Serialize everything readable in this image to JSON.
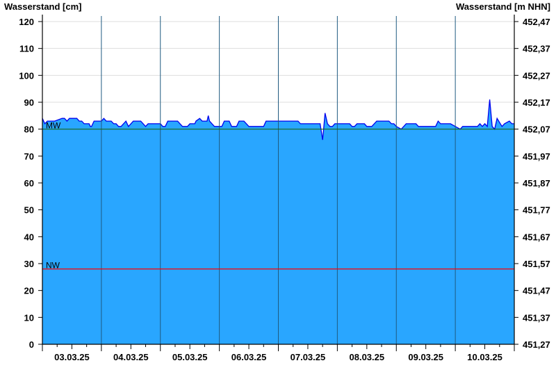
{
  "chart_data": {
    "type": "area",
    "ylabel_left": "Wasserstand [cm]",
    "ylabel_right": "Wasserstand [m NHN]",
    "ylim": [
      0,
      120
    ],
    "yticks_left": [
      "0",
      "10",
      "20",
      "30",
      "40",
      "50",
      "60",
      "70",
      "80",
      "90",
      "100",
      "110",
      "120"
    ],
    "yticks_right": [
      "451,27",
      "451,37",
      "451,47",
      "451,57",
      "451,67",
      "451,77",
      "451,87",
      "451,97",
      "452,07",
      "452,17",
      "452,27",
      "452,37",
      "452,47"
    ],
    "xlim": [
      "2025-03-03T00:00",
      "2025-03-11T00:00"
    ],
    "xtick_labels": [
      "03.03.25",
      "04.03.25",
      "05.03.25",
      "06.03.25",
      "07.03.25",
      "08.03.25",
      "09.03.25",
      "10.03.25"
    ],
    "grid": "horizontal",
    "colors": {
      "fill": "#29a6ff",
      "line": "#0000ee",
      "mw": "#1a6b1a",
      "nw": "#ff0000",
      "day_line": "#1f5a80",
      "grid": "#dddddd"
    },
    "reference_lines": [
      {
        "label": "MW",
        "value": 80
      },
      {
        "label": "NW",
        "value": 28
      }
    ],
    "series": [
      {
        "points": [
          [
            "2025-03-03T00:00",
            84
          ],
          [
            "2025-03-03T01:00",
            82
          ],
          [
            "2025-03-03T02:00",
            83
          ],
          [
            "2025-03-03T05:00",
            83
          ],
          [
            "2025-03-03T08:00",
            84
          ],
          [
            "2025-03-03T09:00",
            84
          ],
          [
            "2025-03-03T10:00",
            83
          ],
          [
            "2025-03-03T11:00",
            84
          ],
          [
            "2025-03-03T14:00",
            84
          ],
          [
            "2025-03-03T15:00",
            83
          ],
          [
            "2025-03-03T16:00",
            83
          ],
          [
            "2025-03-03T17:00",
            82
          ],
          [
            "2025-03-03T19:00",
            82
          ],
          [
            "2025-03-03T19:30",
            81
          ],
          [
            "2025-03-03T20:00",
            81
          ],
          [
            "2025-03-03T21:00",
            83
          ],
          [
            "2025-03-04T00:00",
            83
          ],
          [
            "2025-03-04T01:00",
            84
          ],
          [
            "2025-03-04T02:00",
            83
          ],
          [
            "2025-03-04T04:00",
            83
          ],
          [
            "2025-03-04T05:00",
            82
          ],
          [
            "2025-03-04T06:00",
            82
          ],
          [
            "2025-03-04T07:00",
            81
          ],
          [
            "2025-03-04T08:00",
            81
          ],
          [
            "2025-03-04T10:00",
            83
          ],
          [
            "2025-03-04T11:00",
            81
          ],
          [
            "2025-03-04T13:00",
            83
          ],
          [
            "2025-03-04T16:00",
            83
          ],
          [
            "2025-03-04T17:00",
            82
          ],
          [
            "2025-03-04T18:00",
            81
          ],
          [
            "2025-03-04T19:00",
            82
          ],
          [
            "2025-03-05T00:00",
            82
          ],
          [
            "2025-03-05T01:00",
            81
          ],
          [
            "2025-03-05T02:00",
            81
          ],
          [
            "2025-03-05T03:00",
            83
          ],
          [
            "2025-03-05T07:00",
            83
          ],
          [
            "2025-03-05T08:00",
            82
          ],
          [
            "2025-03-05T09:00",
            81
          ],
          [
            "2025-03-05T11:00",
            81
          ],
          [
            "2025-03-05T12:00",
            82
          ],
          [
            "2025-03-05T14:00",
            82
          ],
          [
            "2025-03-05T14:30",
            83
          ],
          [
            "2025-03-05T16:00",
            84
          ],
          [
            "2025-03-05T17:00",
            83
          ],
          [
            "2025-03-05T19:00",
            83
          ],
          [
            "2025-03-05T19:30",
            85
          ],
          [
            "2025-03-05T20:00",
            83
          ],
          [
            "2025-03-05T21:00",
            82
          ],
          [
            "2025-03-05T22:00",
            81
          ],
          [
            "2025-03-06T01:00",
            81
          ],
          [
            "2025-03-06T02:00",
            83
          ],
          [
            "2025-03-06T04:00",
            83
          ],
          [
            "2025-03-06T05:00",
            81
          ],
          [
            "2025-03-06T07:00",
            81
          ],
          [
            "2025-03-06T08:00",
            83
          ],
          [
            "2025-03-06T10:00",
            83
          ],
          [
            "2025-03-06T11:00",
            82
          ],
          [
            "2025-03-06T12:00",
            81
          ],
          [
            "2025-03-06T18:00",
            81
          ],
          [
            "2025-03-06T19:00",
            83
          ],
          [
            "2025-03-07T08:00",
            83
          ],
          [
            "2025-03-07T09:00",
            82
          ],
          [
            "2025-03-07T17:00",
            82
          ],
          [
            "2025-03-07T18:00",
            76
          ],
          [
            "2025-03-07T19:00",
            86
          ],
          [
            "2025-03-07T20:00",
            82
          ],
          [
            "2025-03-07T21:00",
            81
          ],
          [
            "2025-03-07T22:00",
            81
          ],
          [
            "2025-03-07T23:00",
            82
          ],
          [
            "2025-03-08T05:00",
            82
          ],
          [
            "2025-03-08T06:00",
            81
          ],
          [
            "2025-03-08T07:00",
            81
          ],
          [
            "2025-03-08T08:00",
            82
          ],
          [
            "2025-03-08T11:00",
            82
          ],
          [
            "2025-03-08T12:00",
            81
          ],
          [
            "2025-03-08T14:00",
            81
          ],
          [
            "2025-03-08T16:00",
            83
          ],
          [
            "2025-03-08T21:00",
            83
          ],
          [
            "2025-03-08T22:00",
            82
          ],
          [
            "2025-03-08T23:00",
            82
          ],
          [
            "2025-03-09T00:00",
            81
          ],
          [
            "2025-03-09T02:00",
            80
          ],
          [
            "2025-03-09T03:00",
            81
          ],
          [
            "2025-03-09T04:00",
            82
          ],
          [
            "2025-03-09T08:00",
            82
          ],
          [
            "2025-03-09T09:00",
            81
          ],
          [
            "2025-03-09T16:00",
            81
          ],
          [
            "2025-03-09T17:00",
            83
          ],
          [
            "2025-03-09T18:00",
            82
          ],
          [
            "2025-03-09T22:00",
            82
          ],
          [
            "2025-03-10T00:00",
            81
          ],
          [
            "2025-03-10T02:00",
            80
          ],
          [
            "2025-03-10T03:00",
            81
          ],
          [
            "2025-03-10T09:00",
            81
          ],
          [
            "2025-03-10T10:00",
            82
          ],
          [
            "2025-03-10T11:00",
            81
          ],
          [
            "2025-03-10T12:00",
            82
          ],
          [
            "2025-03-10T13:00",
            81
          ],
          [
            "2025-03-10T14:00",
            91
          ],
          [
            "2025-03-10T15:00",
            81
          ],
          [
            "2025-03-10T16:00",
            80
          ],
          [
            "2025-03-10T17:00",
            84
          ],
          [
            "2025-03-10T19:00",
            81
          ],
          [
            "2025-03-10T20:00",
            82
          ],
          [
            "2025-03-10T22:00",
            83
          ],
          [
            "2025-03-10T23:00",
            82
          ]
        ]
      }
    ]
  }
}
